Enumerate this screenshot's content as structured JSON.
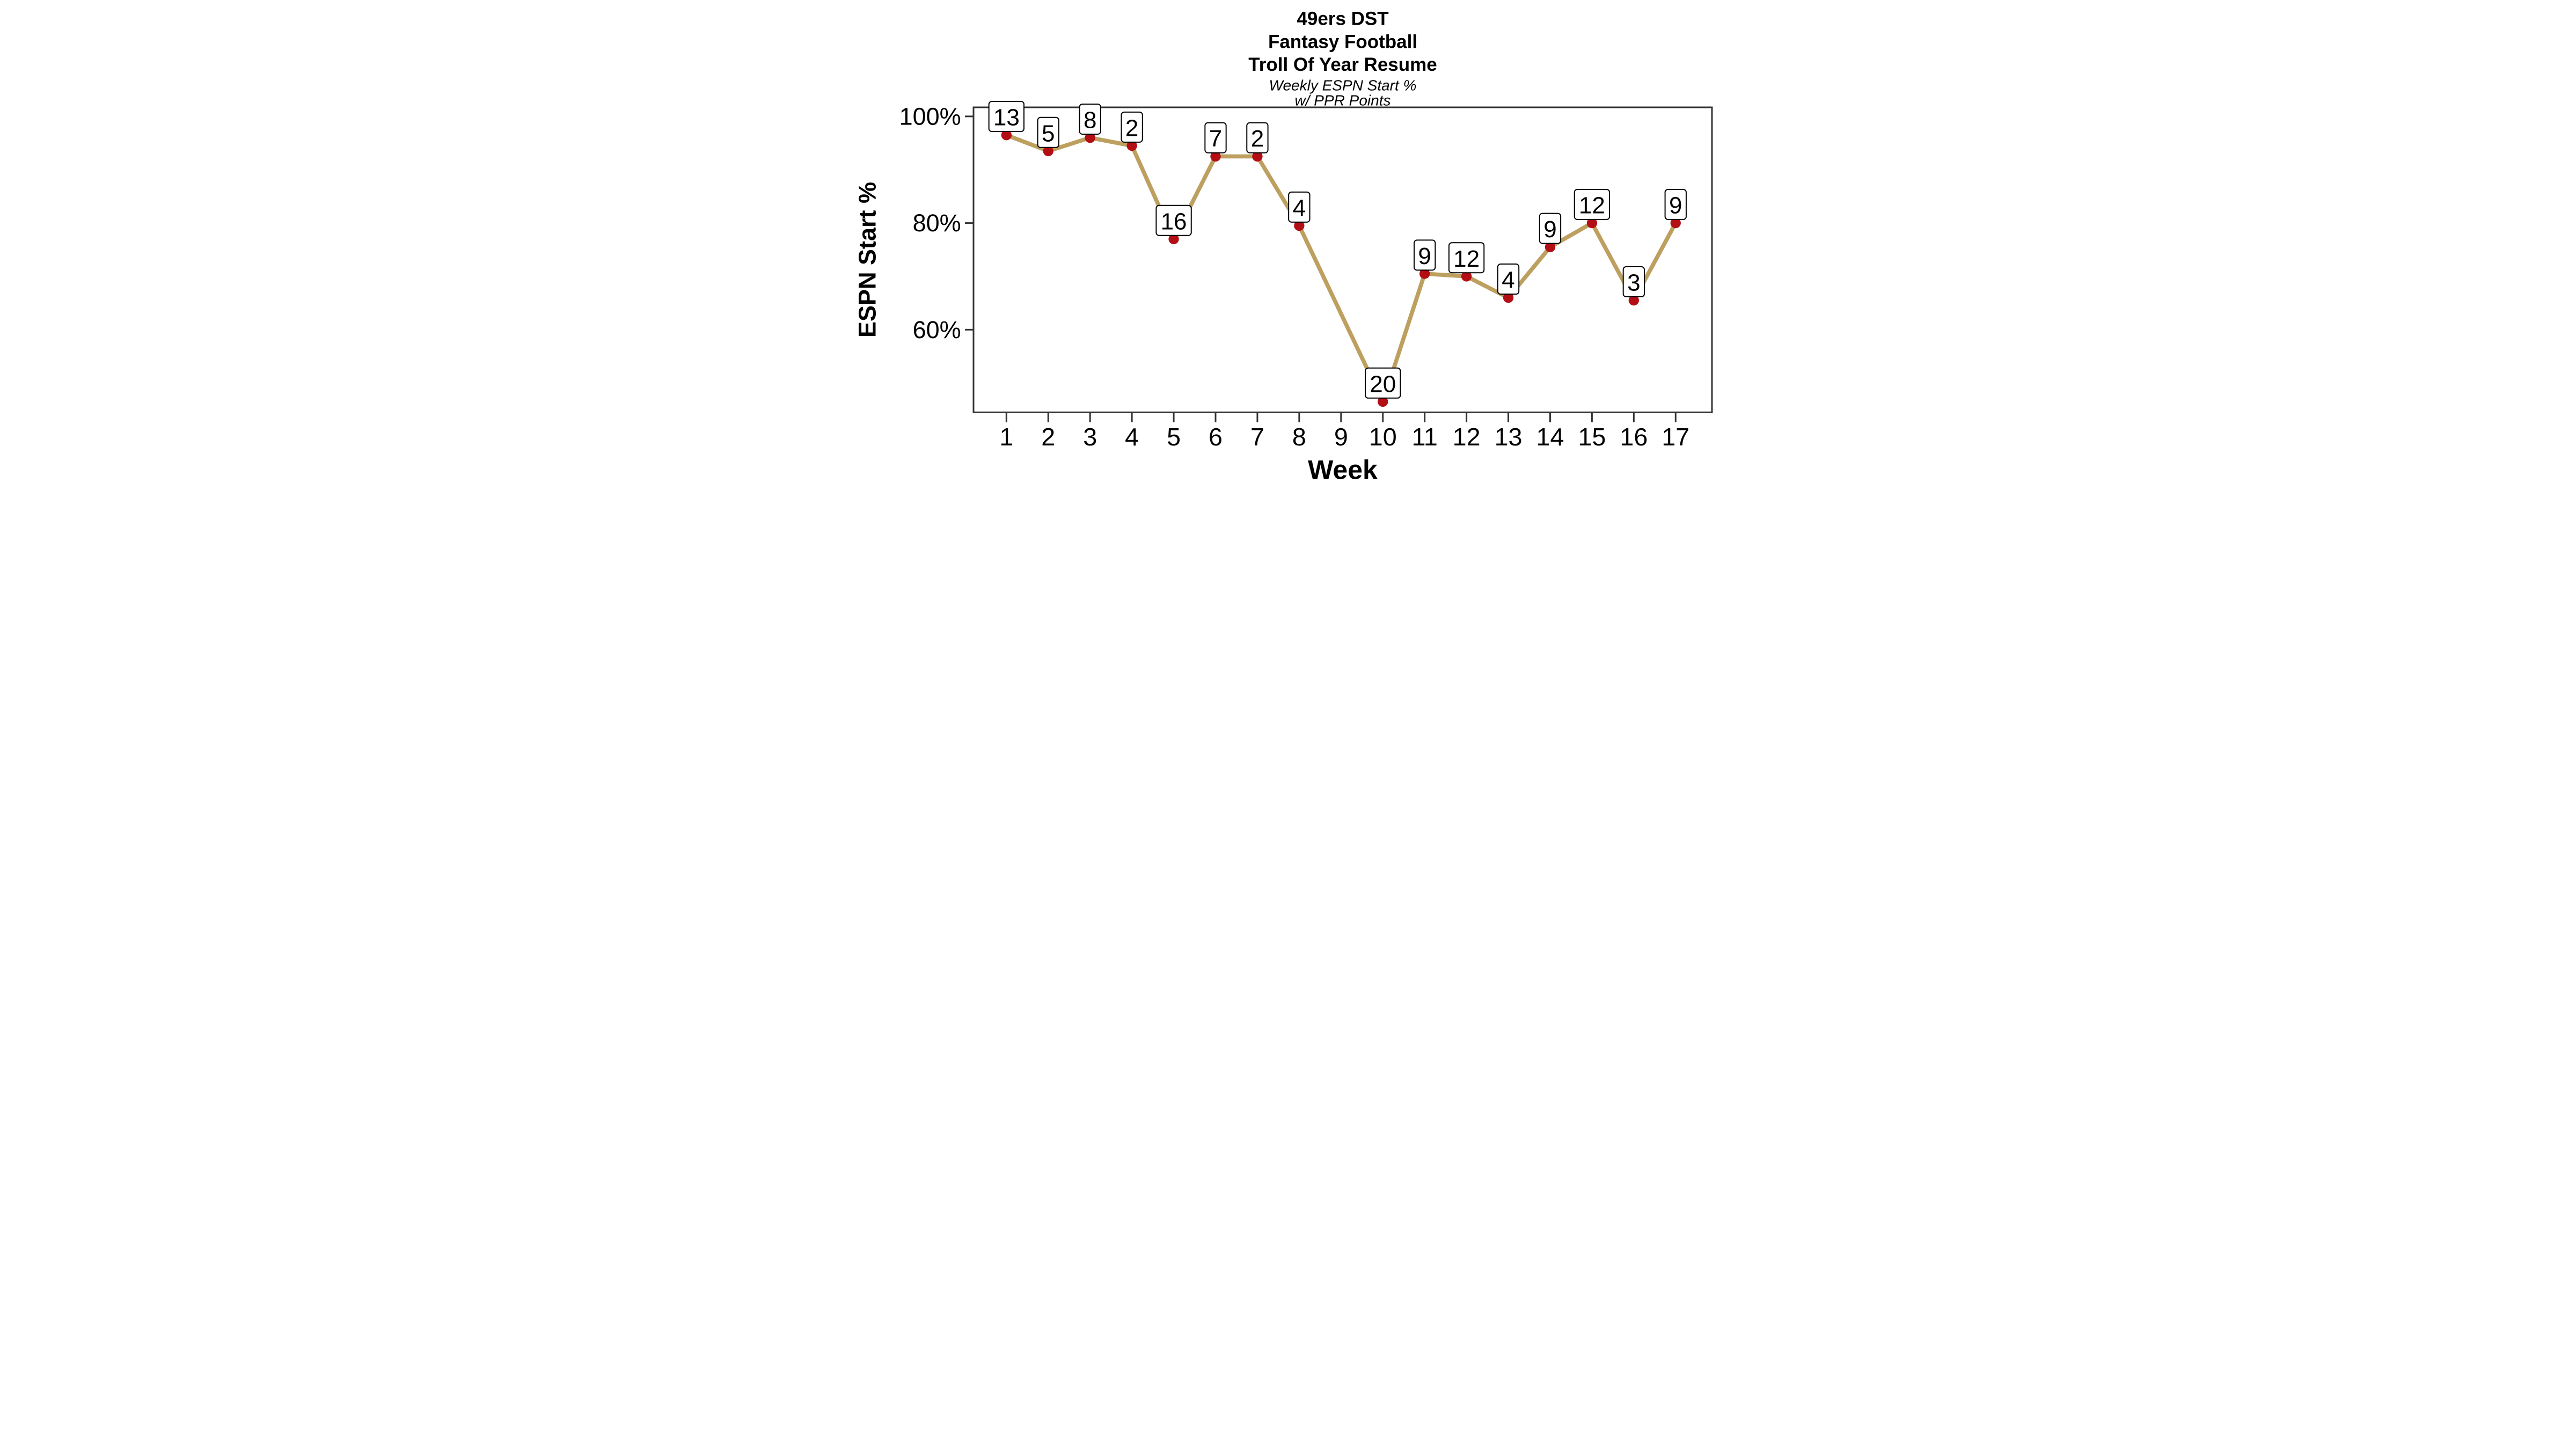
{
  "chart_data": {
    "type": "line",
    "title_lines": [
      "49ers DST",
      "Fantasy Football",
      "Troll Of Year Resume"
    ],
    "subtitle_lines": [
      "Weekly ESPN Start %",
      "w/ PPR Points"
    ],
    "xlabel": "Week",
    "ylabel": "ESPN Start %",
    "x_tick_labels": [
      "1",
      "2",
      "3",
      "4",
      "5",
      "6",
      "7",
      "8",
      "9",
      "10",
      "11",
      "12",
      "13",
      "14",
      "15",
      "16",
      "17"
    ],
    "y_ticks": [
      {
        "value": 100,
        "label": "100%"
      },
      {
        "value": 80,
        "label": "80%"
      },
      {
        "value": 60,
        "label": "60%"
      }
    ],
    "ylim": [
      44.5,
      101.7
    ],
    "xlim": [
      1,
      17
    ],
    "grid": "off",
    "legend": "none",
    "missing_weeks": [
      9
    ],
    "points": [
      {
        "week": 1,
        "start_pct": 96.5,
        "ppr_label": "13"
      },
      {
        "week": 2,
        "start_pct": 93.5,
        "ppr_label": "5"
      },
      {
        "week": 3,
        "start_pct": 96.0,
        "ppr_label": "8"
      },
      {
        "week": 4,
        "start_pct": 94.5,
        "ppr_label": "2"
      },
      {
        "week": 5,
        "start_pct": 77.0,
        "ppr_label": "16"
      },
      {
        "week": 6,
        "start_pct": 92.5,
        "ppr_label": "7"
      },
      {
        "week": 7,
        "start_pct": 92.5,
        "ppr_label": "2"
      },
      {
        "week": 8,
        "start_pct": 79.5,
        "ppr_label": "4"
      },
      {
        "week": 10,
        "start_pct": 46.5,
        "ppr_label": "20"
      },
      {
        "week": 11,
        "start_pct": 70.5,
        "ppr_label": "9"
      },
      {
        "week": 12,
        "start_pct": 70.0,
        "ppr_label": "12"
      },
      {
        "week": 13,
        "start_pct": 66.0,
        "ppr_label": "4"
      },
      {
        "week": 14,
        "start_pct": 75.5,
        "ppr_label": "9"
      },
      {
        "week": 15,
        "start_pct": 80.0,
        "ppr_label": "12"
      },
      {
        "week": 16,
        "start_pct": 65.5,
        "ppr_label": "3"
      },
      {
        "week": 17,
        "start_pct": 80.0,
        "ppr_label": "9"
      }
    ],
    "colors": {
      "line": "#BDA05F",
      "marker": "#B30E13",
      "axis": "#333333",
      "text": "#000000",
      "label_box_fill": "#FFFFFF",
      "label_box_border": "#000000"
    }
  }
}
